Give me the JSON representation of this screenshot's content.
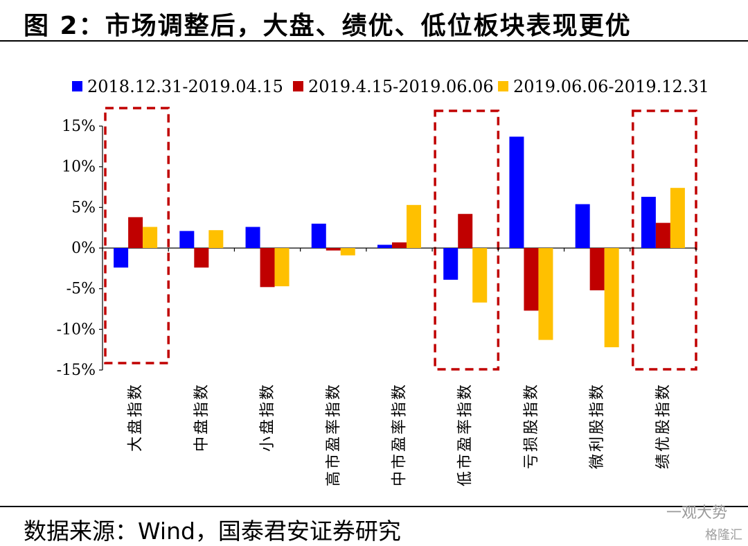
{
  "header": {
    "title": "图 2：市场调整后，大盘、绩优、低位板块表现更优"
  },
  "footer": {
    "source": "数据来源：Wind，国泰君安证券研究"
  },
  "watermark": {
    "text": "一观大势",
    "brand": "格隆汇"
  },
  "colors": {
    "series": [
      "#0000ff",
      "#c00000",
      "#ffc000"
    ],
    "highlight": "#c00000"
  },
  "chart_data": {
    "type": "bar",
    "title": "",
    "xlabel": "",
    "ylabel": "",
    "categories": [
      "大盘指数",
      "中盘指数",
      "小盘指数",
      "高市盈率指数",
      "中市盈率指数",
      "低市盈率指数",
      "亏损股指数",
      "微利股指数",
      "绩优股指数"
    ],
    "series": [
      {
        "name": "2018.12.31-2019.04.15",
        "values": [
          -2.4,
          2.1,
          2.6,
          3.0,
          0.4,
          -3.9,
          13.7,
          5.4,
          6.3
        ]
      },
      {
        "name": "2019.4.15-2019.06.06",
        "values": [
          3.8,
          -2.4,
          -4.8,
          -0.3,
          0.7,
          4.2,
          -7.7,
          -5.2,
          3.1
        ]
      },
      {
        "name": "2019.06.06-2019.12.31",
        "values": [
          2.6,
          2.2,
          -4.7,
          -0.9,
          5.3,
          -6.7,
          -11.3,
          -12.2,
          7.4
        ]
      }
    ],
    "ylim": [
      -15,
      15
    ],
    "yticks": [
      15,
      10,
      5,
      0,
      -5,
      -10,
      -15
    ],
    "ytick_labels": [
      "15%",
      "10%",
      "5%",
      "0%",
      "-5%",
      "-10%",
      "-15%"
    ],
    "legend_position": "top",
    "grid": false,
    "highlighted_categories": [
      "大盘指数",
      "低市盈率指数",
      "绩优股指数"
    ]
  }
}
